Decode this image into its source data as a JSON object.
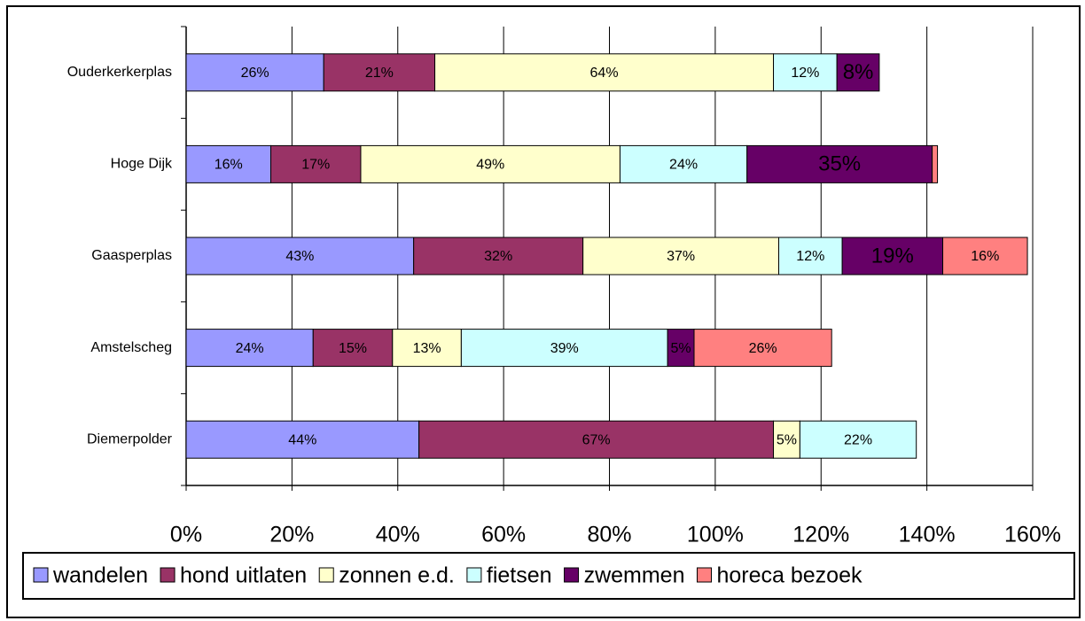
{
  "chart_data": {
    "type": "stacked_hbar",
    "categories": [
      "Ouderkerkerplas",
      "Hoge Dijk",
      "Gaasperplas",
      "Amstelscheg",
      "Diemerpolder"
    ],
    "series": [
      {
        "name": "wandelen",
        "color": "#9999ff",
        "values": [
          26,
          16,
          43,
          24,
          44
        ],
        "value_labels": [
          "26%",
          "16%",
          "43%",
          "24%",
          "44%"
        ]
      },
      {
        "name": "hond uitlaten",
        "color": "#993366",
        "values": [
          21,
          17,
          32,
          15,
          67
        ],
        "value_labels": [
          "21%",
          "17%",
          "32%",
          "15%",
          "67%"
        ]
      },
      {
        "name": "zonnen e.d.",
        "color": "#ffffcc",
        "values": [
          64,
          49,
          37,
          13,
          5
        ],
        "value_labels": [
          "64%",
          "49%",
          "37%",
          "13%",
          "5%"
        ]
      },
      {
        "name": "fietsen",
        "color": "#ccffff",
        "values": [
          12,
          24,
          12,
          39,
          22
        ],
        "value_labels": [
          "12%",
          "24%",
          "12%",
          "39%",
          "22%"
        ]
      },
      {
        "name": "zwemmen",
        "color": "#660066",
        "values": [
          8,
          35,
          19,
          5,
          null
        ],
        "value_labels": [
          "8%",
          "35%",
          "19%",
          "5%",
          null
        ]
      },
      {
        "name": "horeca bezoek",
        "color": "#ff8080",
        "values": [
          null,
          1,
          16,
          26,
          null
        ],
        "value_labels": [
          null,
          null,
          "16%",
          "26%",
          null
        ]
      }
    ],
    "xlim": [
      0,
      160
    ],
    "xticks": [
      {
        "value": 0,
        "label": "0%"
      },
      {
        "value": 20,
        "label": "20%"
      },
      {
        "value": 40,
        "label": "40%"
      },
      {
        "value": 60,
        "label": "60%"
      },
      {
        "value": 80,
        "label": "80%"
      },
      {
        "value": 100,
        "label": "100%"
      },
      {
        "value": 120,
        "label": "120%"
      },
      {
        "value": 140,
        "label": "140%"
      },
      {
        "value": 160,
        "label": "160%"
      }
    ],
    "grid": true,
    "legend": "bottom"
  }
}
